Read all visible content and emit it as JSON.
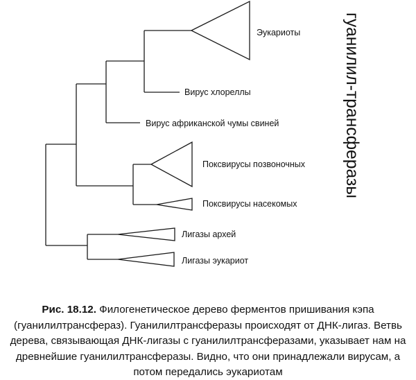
{
  "side_title": "гуанилил-трансферазы",
  "leaves": {
    "eukaryotes": "Эукариоты",
    "chlorella_virus": "Вирус хлореллы",
    "asfv": "Вирус африканской чумы свиней",
    "vertebrate_poxviruses": "Поксвирусы позвоночных",
    "insect_poxviruses": "Поксвирусы насекомых",
    "archaeal_ligases": "Лигазы архей",
    "eukaryotic_ligases": "Лигазы эукариот"
  },
  "caption": {
    "label": "Рис. 18.12.",
    "text": " Филогенетическое дерево ферментов пришивания кэпа (гуанилилтрансфераз). Гуанилилтрансферазы происходят от ДНК-лигаз. Ветвь дерева, связывающая ДНК-лигазы с гуанилилтрансферазами, указывает нам на древнейшие гуанилилтрансферазы. Видно, что они принадлежали вирусам, а потом передались эукариотам"
  }
}
